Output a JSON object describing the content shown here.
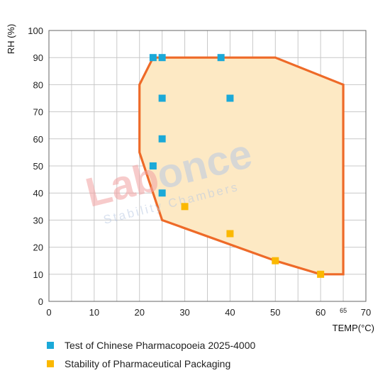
{
  "chart_data": {
    "type": "scatter",
    "xlabel": "TEMP(°C)",
    "ylabel": "RH (%)",
    "xlim": [
      0,
      70
    ],
    "ylim": [
      0,
      100
    ],
    "x_ticks": [
      {
        "value": 0,
        "label": "0"
      },
      {
        "value": 10,
        "label": "10"
      },
      {
        "value": 20,
        "label": "20"
      },
      {
        "value": 30,
        "label": "30"
      },
      {
        "value": 40,
        "label": "40"
      },
      {
        "value": 50,
        "label": "50"
      },
      {
        "value": 60,
        "label": "60"
      },
      {
        "value": 65,
        "label": "65"
      },
      {
        "value": 70,
        "label": "70"
      }
    ],
    "y_ticks": [
      0,
      10,
      20,
      30,
      40,
      50,
      60,
      70,
      80,
      90,
      100
    ],
    "grid": true,
    "grid_step": {
      "x": 5,
      "y": 10
    },
    "range_polygon": {
      "points": [
        [
          20,
          55
        ],
        [
          20,
          80
        ],
        [
          23,
          90
        ],
        [
          50,
          90
        ],
        [
          65,
          80
        ],
        [
          65,
          10
        ],
        [
          60,
          10
        ],
        [
          50,
          15
        ],
        [
          25,
          30
        ]
      ],
      "fill": "#fde9c4",
      "stroke": "#ee6a28"
    },
    "series": [
      {
        "name": "Test of Chinese Pharmacopoeia 2025-4000",
        "color": "#1ba9d8",
        "points": [
          [
            23,
            90
          ],
          [
            25,
            90
          ],
          [
            38,
            90
          ],
          [
            25,
            75
          ],
          [
            40,
            75
          ],
          [
            25,
            60
          ],
          [
            23,
            50
          ],
          [
            25,
            40
          ]
        ]
      },
      {
        "name": "Stability of Pharmaceutical Packaging",
        "color": "#fbb800",
        "points": [
          [
            30,
            35
          ],
          [
            40,
            25
          ],
          [
            50,
            15
          ],
          [
            60,
            10
          ]
        ]
      }
    ],
    "legend_position": "bottom"
  },
  "watermark": {
    "brand": "Labonce",
    "tagline": "Stability Chambers",
    "brand_colors": [
      "#f2a2a2",
      "#b9c9e3"
    ]
  }
}
